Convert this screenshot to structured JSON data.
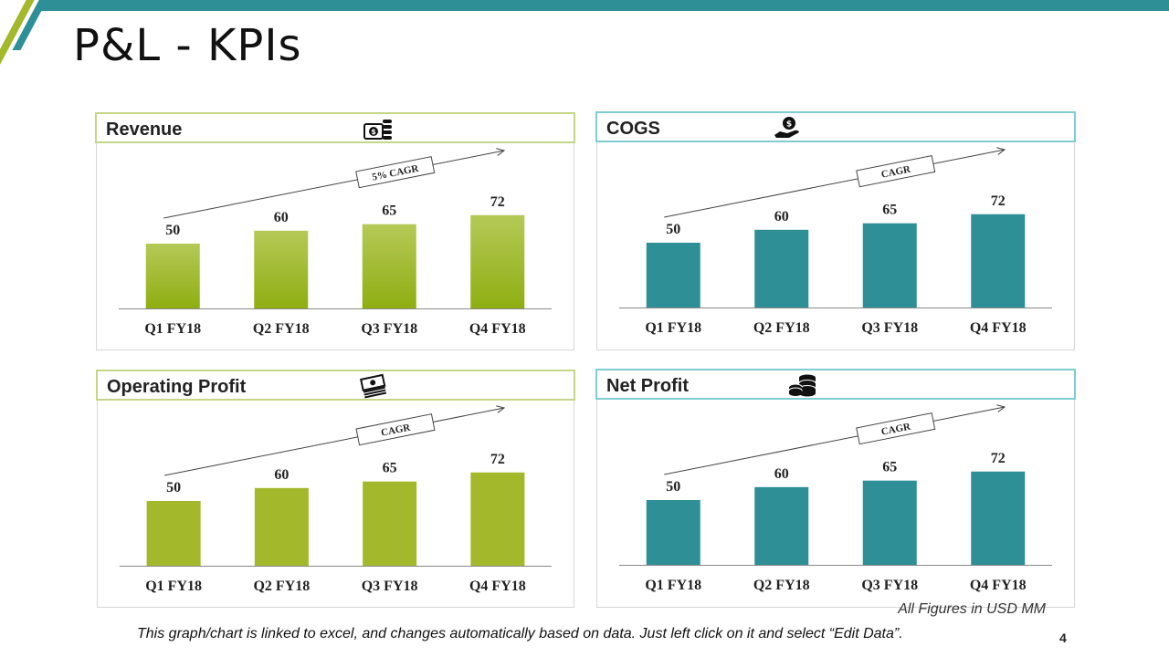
{
  "page": {
    "title": "P&L - KPIs",
    "footer_note": "All Figures in USD MM",
    "footer_text": "This graph/chart is linked to excel, and changes automatically based on data. Just left click on it and select “Edit Data”.",
    "page_number": "4"
  },
  "colors": {
    "accent_teal": "#2e8f96",
    "accent_green": "#a3b82a",
    "green_gradient_top": "#b5c957",
    "green_gradient_bottom": "#8fae12"
  },
  "chart_data": [
    {
      "id": "revenue",
      "type": "bar",
      "title": "Revenue",
      "icon": "money-coins-icon",
      "categories": [
        "Q1 FY18",
        "Q2 FY18",
        "Q3 FY18",
        "Q4 FY18"
      ],
      "values": [
        50,
        60,
        65,
        72
      ],
      "annotation": "5% CAGR",
      "bar_style": "green-gradient",
      "ylim": [
        0,
        100
      ],
      "xlabel": "",
      "ylabel": ""
    },
    {
      "id": "cogs",
      "type": "bar",
      "title": "COGS",
      "icon": "hand-coin-icon",
      "categories": [
        "Q1 FY18",
        "Q2 FY18",
        "Q3 FY18",
        "Q4 FY18"
      ],
      "values": [
        50,
        60,
        65,
        72
      ],
      "annotation": "CAGR",
      "bar_style": "teal",
      "ylim": [
        0,
        100
      ],
      "xlabel": "",
      "ylabel": ""
    },
    {
      "id": "operating-profit",
      "type": "bar",
      "title": "Operating Profit",
      "icon": "cash-stack-icon",
      "categories": [
        "Q1 FY18",
        "Q2 FY18",
        "Q3 FY18",
        "Q4 FY18"
      ],
      "values": [
        50,
        60,
        65,
        72
      ],
      "annotation": "CAGR",
      "bar_style": "green",
      "ylim": [
        0,
        100
      ],
      "xlabel": "",
      "ylabel": ""
    },
    {
      "id": "net-profit",
      "type": "bar",
      "title": "Net Profit",
      "icon": "coin-stack-icon",
      "categories": [
        "Q1 FY18",
        "Q2 FY18",
        "Q3 FY18",
        "Q4 FY18"
      ],
      "values": [
        50,
        60,
        65,
        72
      ],
      "annotation": "CAGR",
      "bar_style": "teal",
      "ylim": [
        0,
        100
      ],
      "xlabel": "",
      "ylabel": ""
    }
  ]
}
